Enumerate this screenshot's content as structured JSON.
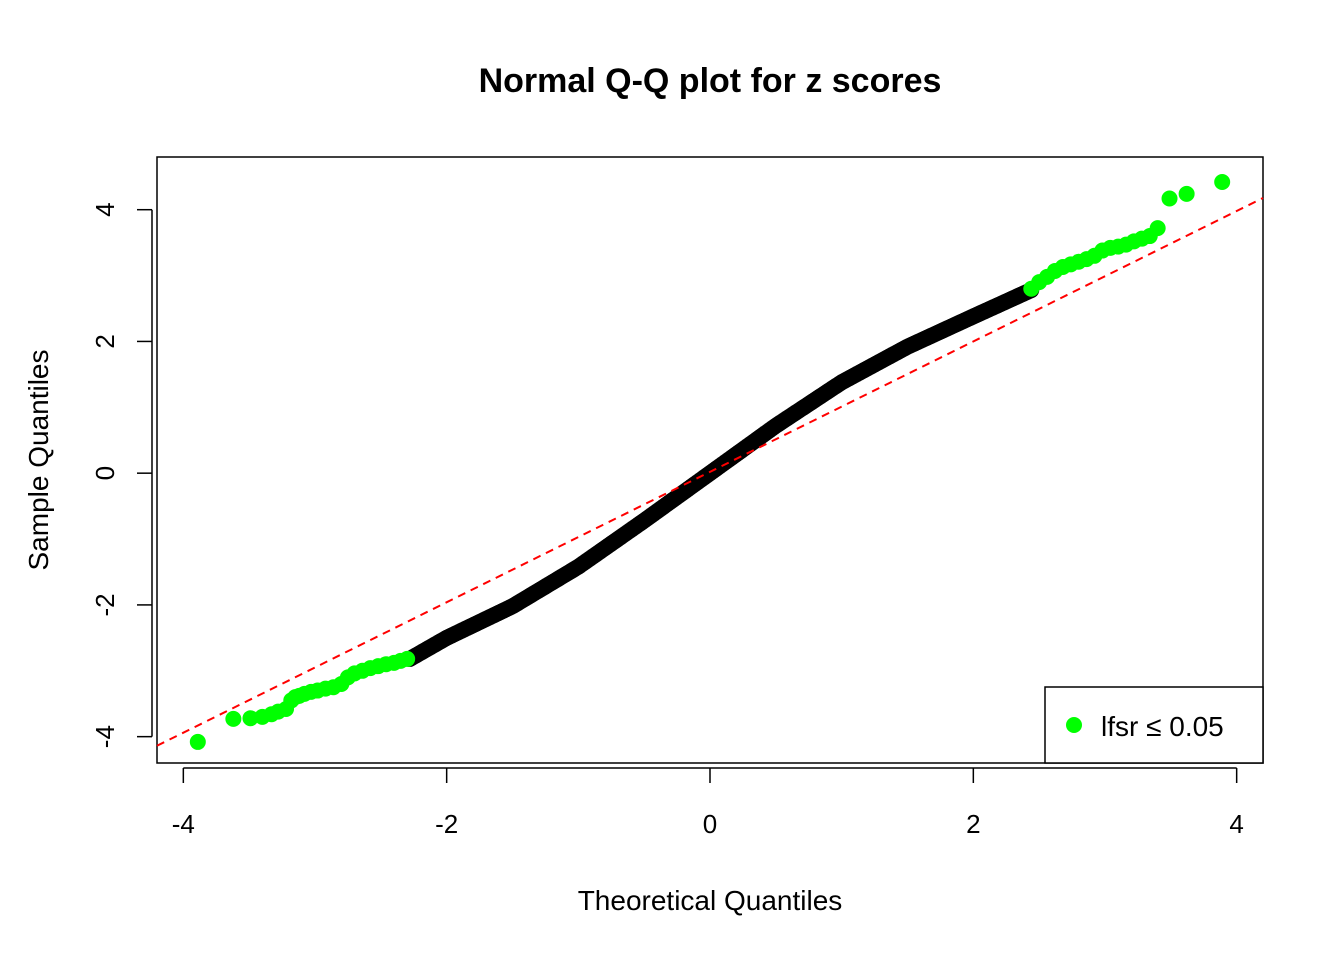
{
  "chart_data": {
    "type": "scatter",
    "title": "Normal Q-Q plot for z scores",
    "xlabel": "Theoretical Quantiles",
    "ylabel": "Sample Quantiles",
    "xlim": [
      -4.2,
      4.2
    ],
    "ylim": [
      -4.4,
      4.8
    ],
    "x_ticks": [
      -4,
      -2,
      0,
      2,
      4
    ],
    "y_ticks": [
      -4,
      -2,
      0,
      2,
      4
    ],
    "x_tick_labels": [
      "-4",
      "-2",
      "0",
      "2",
      "4"
    ],
    "y_tick_labels": [
      "-4",
      "-2",
      "0",
      "2",
      "4"
    ],
    "grid": false,
    "legend": {
      "position": "bottom-right",
      "entries": [
        {
          "label": "lfsr  ≤ 0.05",
          "color": "#00ff00",
          "marker": "circle"
        }
      ]
    },
    "reference_line": {
      "style": "dashed",
      "color": "#ff0000",
      "intercept": 0.02,
      "slope": 0.99
    },
    "highlight_threshold": 0.05,
    "colors": {
      "significant": "#00ff00",
      "other": "#000000",
      "reference": "#ff0000"
    },
    "curve_knots": {
      "x": [
        -2.28,
        -2.0,
        -1.5,
        -1.0,
        -0.5,
        0.0,
        0.5,
        1.0,
        1.5,
        2.0,
        2.44
      ],
      "y": [
        -2.82,
        -2.5,
        -2.02,
        -1.42,
        -0.72,
        0.0,
        0.72,
        1.38,
        1.92,
        2.38,
        2.78
      ]
    },
    "series": [
      {
        "name": "lfsr  ≤ 0.05",
        "color": "#00ff00",
        "x": [
          -3.89,
          -3.62,
          -3.49,
          -3.4,
          -3.33,
          -3.28,
          -3.22,
          -3.18,
          -3.15,
          -3.12,
          -3.08,
          -3.03,
          -2.98,
          -2.92,
          -2.86,
          -2.8,
          -2.75,
          -2.7,
          -2.64,
          -2.58,
          -2.52,
          -2.46,
          -2.4,
          -2.35,
          -2.3,
          2.44,
          2.5,
          2.56,
          2.62,
          2.68,
          2.74,
          2.8,
          2.86,
          2.92,
          2.98,
          3.04,
          3.1,
          3.16,
          3.22,
          3.28,
          3.34,
          3.4,
          3.49,
          3.62,
          3.89
        ],
        "y": [
          -4.08,
          -3.73,
          -3.72,
          -3.7,
          -3.66,
          -3.62,
          -3.58,
          -3.45,
          -3.4,
          -3.38,
          -3.35,
          -3.32,
          -3.3,
          -3.27,
          -3.25,
          -3.2,
          -3.1,
          -3.04,
          -3.0,
          -2.96,
          -2.93,
          -2.9,
          -2.88,
          -2.85,
          -2.82,
          2.8,
          2.9,
          2.98,
          3.07,
          3.13,
          3.17,
          3.21,
          3.25,
          3.3,
          3.38,
          3.42,
          3.44,
          3.47,
          3.52,
          3.56,
          3.6,
          3.72,
          4.17,
          4.24,
          4.42
        ]
      }
    ]
  }
}
